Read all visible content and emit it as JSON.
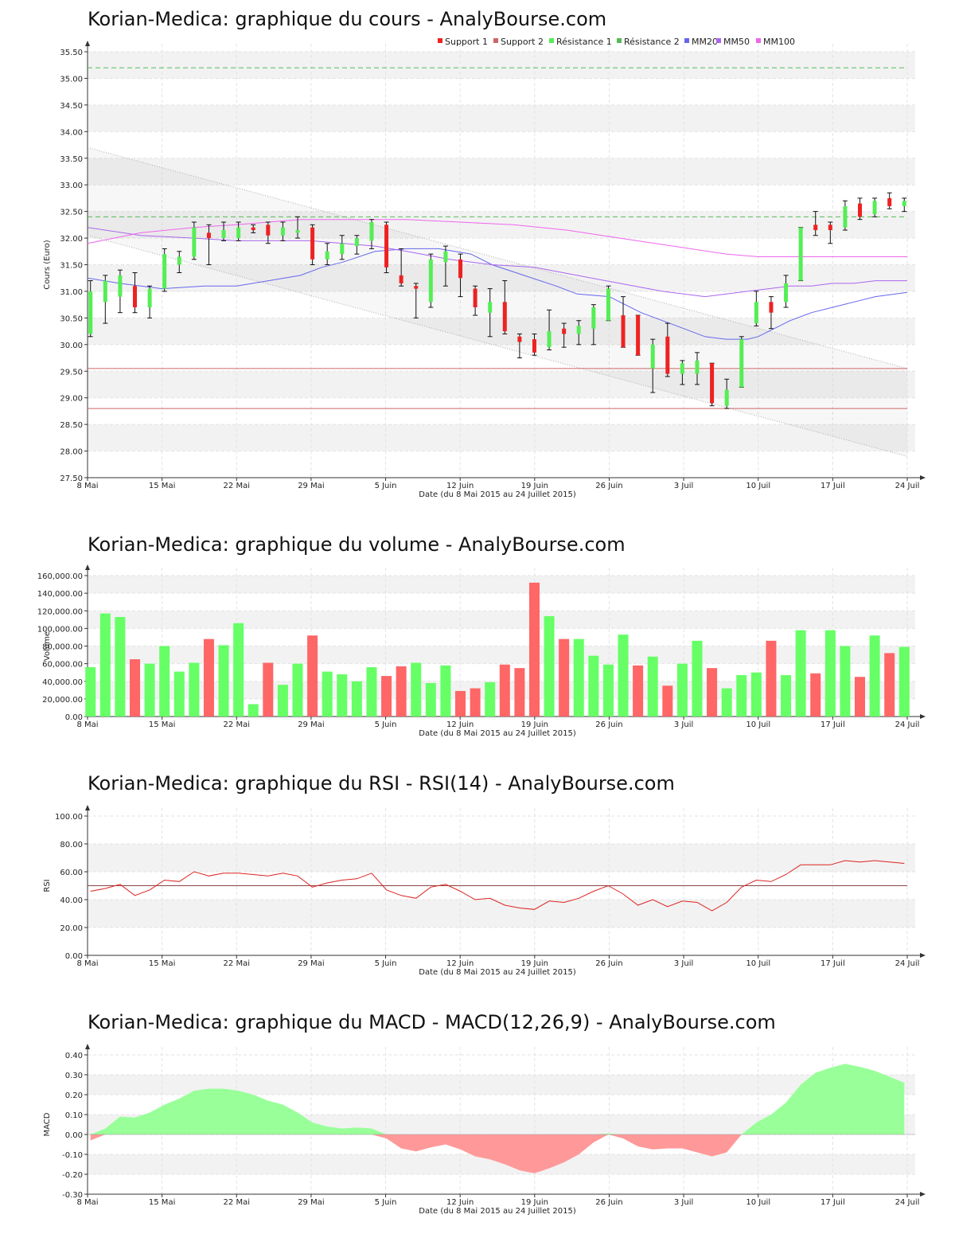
{
  "colors": {
    "up": "#55ee55",
    "down": "#ee2222",
    "vol_up": "#66ff66",
    "vol_down": "#ff6666",
    "mm20": "#6666ee",
    "mm50": "#aa66ee",
    "mm100": "#ee66ee",
    "support": "#cc6666",
    "resistance": "#55bb55",
    "rsi": "#dd2222",
    "macd_pos": "#99ff99",
    "macd_neg": "#ff9999"
  },
  "chart_data": [
    {
      "id": "price",
      "type": "candlestick",
      "title": "Korian-Medica: graphique du cours - AnalyBourse.com",
      "xlabel": "Date (du 8 Mai 2015 au 24 Juillet 2015)",
      "ylabel": "Cours (Euro)",
      "ylim": [
        27.5,
        35.5
      ],
      "yticks": [
        27.5,
        28,
        28.5,
        29,
        29.5,
        30,
        30.5,
        31,
        31.5,
        32,
        32.5,
        33,
        33.5,
        34,
        34.5,
        35,
        35.5
      ],
      "ytick_format": "2",
      "grid": true,
      "xticks": [
        {
          "d": 0,
          "label": "8 Mai"
        },
        {
          "d": 7,
          "label": "15 Mai"
        },
        {
          "d": 14,
          "label": "22 Mai"
        },
        {
          "d": 21,
          "label": "29 Mai"
        },
        {
          "d": 28,
          "label": "5 Juin"
        },
        {
          "d": 35,
          "label": "12 Juin"
        },
        {
          "d": 42,
          "label": "19 Juin"
        },
        {
          "d": 49,
          "label": "26 Juin"
        },
        {
          "d": 56,
          "label": "3 Juil"
        },
        {
          "d": 63,
          "label": "10 Juil"
        },
        {
          "d": 70,
          "label": "17 Juil"
        },
        {
          "d": 77,
          "label": "24 Juil"
        }
      ],
      "legend": [
        "Support 1",
        "Support 2",
        "Résistance 1",
        "Résistance 2",
        "MM20",
        "MM50",
        "MM100"
      ],
      "levels": {
        "support_1": 29.55,
        "support_2": 28.8,
        "resistance_1": 32.4,
        "resistance_2": 35.2
      },
      "trend_lines": [
        [
          [
            0,
            33.7
          ],
          [
            77,
            29.55
          ]
        ],
        [
          [
            0,
            32.05
          ],
          [
            77,
            27.9
          ]
        ]
      ],
      "candles": [
        {
          "d": 0,
          "o": 30.2,
          "h": 31.2,
          "l": 30.15,
          "c": 31.0
        },
        {
          "d": 1,
          "o": 30.8,
          "h": 31.3,
          "l": 30.4,
          "c": 31.2
        },
        {
          "d": 2,
          "o": 30.9,
          "h": 31.4,
          "l": 30.6,
          "c": 31.3
        },
        {
          "d": 3,
          "o": 31.1,
          "h": 31.35,
          "l": 30.6,
          "c": 30.7
        },
        {
          "d": 4,
          "o": 30.7,
          "h": 31.1,
          "l": 30.5,
          "c": 31.05
        },
        {
          "d": 5,
          "o": 31.05,
          "h": 31.8,
          "l": 31.0,
          "c": 31.7
        },
        {
          "d": 6,
          "o": 31.5,
          "h": 31.75,
          "l": 31.35,
          "c": 31.65
        },
        {
          "d": 7,
          "o": 31.65,
          "h": 32.3,
          "l": 31.6,
          "c": 32.2
        },
        {
          "d": 8,
          "o": 32.1,
          "h": 32.25,
          "l": 31.5,
          "c": 32.0
        },
        {
          "d": 9,
          "o": 32.0,
          "h": 32.3,
          "l": 31.95,
          "c": 32.15
        },
        {
          "d": 10,
          "o": 32.0,
          "h": 32.3,
          "l": 31.95,
          "c": 32.2
        },
        {
          "d": 11,
          "o": 32.2,
          "h": 32.25,
          "l": 32.1,
          "c": 32.15
        },
        {
          "d": 12,
          "o": 32.25,
          "h": 32.3,
          "l": 31.9,
          "c": 32.05
        },
        {
          "d": 13,
          "o": 32.05,
          "h": 32.3,
          "l": 31.95,
          "c": 32.2
        },
        {
          "d": 14,
          "o": 32.1,
          "h": 32.4,
          "l": 32.0,
          "c": 32.15
        },
        {
          "d": 15,
          "o": 32.2,
          "h": 32.25,
          "l": 31.5,
          "c": 31.6
        },
        {
          "d": 16,
          "o": 31.6,
          "h": 31.9,
          "l": 31.5,
          "c": 31.75
        },
        {
          "d": 17,
          "o": 31.7,
          "h": 32.05,
          "l": 31.6,
          "c": 31.9
        },
        {
          "d": 18,
          "o": 31.85,
          "h": 32.05,
          "l": 31.7,
          "c": 32.0
        },
        {
          "d": 19,
          "o": 31.95,
          "h": 32.35,
          "l": 31.8,
          "c": 32.3
        },
        {
          "d": 20,
          "o": 32.25,
          "h": 32.3,
          "l": 31.35,
          "c": 31.45
        },
        {
          "d": 21,
          "o": 31.3,
          "h": 31.8,
          "l": 31.1,
          "c": 31.15
        },
        {
          "d": 22,
          "o": 31.1,
          "h": 31.15,
          "l": 30.5,
          "c": 31.05
        },
        {
          "d": 23,
          "o": 30.8,
          "h": 31.7,
          "l": 30.7,
          "c": 31.6
        },
        {
          "d": 24,
          "o": 31.55,
          "h": 31.85,
          "l": 31.1,
          "c": 31.75
        },
        {
          "d": 25,
          "o": 31.6,
          "h": 31.7,
          "l": 30.9,
          "c": 31.25
        },
        {
          "d": 26,
          "o": 31.05,
          "h": 31.1,
          "l": 30.55,
          "c": 30.7
        },
        {
          "d": 27,
          "o": 30.6,
          "h": 31.05,
          "l": 30.15,
          "c": 30.8
        },
        {
          "d": 28,
          "o": 30.8,
          "h": 31.2,
          "l": 30.2,
          "c": 30.25
        },
        {
          "d": 29,
          "o": 30.15,
          "h": 30.2,
          "l": 29.75,
          "c": 30.05
        },
        {
          "d": 30,
          "o": 30.1,
          "h": 30.2,
          "l": 29.8,
          "c": 29.85
        },
        {
          "d": 31,
          "o": 29.95,
          "h": 30.65,
          "l": 29.9,
          "c": 30.25
        },
        {
          "d": 32,
          "o": 30.3,
          "h": 30.4,
          "l": 29.95,
          "c": 30.2
        },
        {
          "d": 33,
          "o": 30.2,
          "h": 30.45,
          "l": 30.0,
          "c": 30.35
        },
        {
          "d": 34,
          "o": 30.3,
          "h": 30.75,
          "l": 30.0,
          "c": 30.7
        },
        {
          "d": 35,
          "o": 30.45,
          "h": 31.1,
          "l": 30.45,
          "c": 31.05
        },
        {
          "d": 36,
          "o": 30.55,
          "h": 30.9,
          "l": 29.95,
          "c": 29.95
        },
        {
          "d": 37,
          "o": 30.55,
          "h": 30.55,
          "l": 29.8,
          "c": 29.8
        },
        {
          "d": 38,
          "o": 29.55,
          "h": 30.1,
          "l": 29.1,
          "c": 30.0
        },
        {
          "d": 39,
          "o": 30.15,
          "h": 30.4,
          "l": 29.4,
          "c": 29.45
        },
        {
          "d": 40,
          "o": 29.45,
          "h": 29.7,
          "l": 29.25,
          "c": 29.65
        },
        {
          "d": 41,
          "o": 29.45,
          "h": 29.85,
          "l": 29.25,
          "c": 29.7
        },
        {
          "d": 42,
          "o": 29.65,
          "h": 29.65,
          "l": 28.85,
          "c": 28.9
        },
        {
          "d": 43,
          "o": 28.85,
          "h": 29.35,
          "l": 28.8,
          "c": 29.15
        },
        {
          "d": 44,
          "o": 29.2,
          "h": 30.15,
          "l": 29.2,
          "c": 30.1
        },
        {
          "d": 45,
          "o": 30.4,
          "h": 31.0,
          "l": 30.35,
          "c": 30.8
        },
        {
          "d": 46,
          "o": 30.8,
          "h": 30.9,
          "l": 30.3,
          "c": 30.6
        },
        {
          "d": 47,
          "o": 30.8,
          "h": 31.3,
          "l": 30.7,
          "c": 31.15
        },
        {
          "d": 48,
          "o": 31.2,
          "h": 32.2,
          "l": 31.2,
          "c": 32.2
        },
        {
          "d": 49,
          "o": 32.25,
          "h": 32.5,
          "l": 32.05,
          "c": 32.15
        },
        {
          "d": 50,
          "o": 32.25,
          "h": 32.3,
          "l": 31.9,
          "c": 32.15
        },
        {
          "d": 51,
          "o": 32.2,
          "h": 32.7,
          "l": 32.15,
          "c": 32.6
        },
        {
          "d": 52,
          "o": 32.65,
          "h": 32.75,
          "l": 32.35,
          "c": 32.4
        },
        {
          "d": 53,
          "o": 32.45,
          "h": 32.75,
          "l": 32.4,
          "c": 32.7
        },
        {
          "d": 54,
          "o": 32.75,
          "h": 32.85,
          "l": 32.55,
          "c": 32.6
        },
        {
          "d": 55,
          "o": 32.6,
          "h": 32.75,
          "l": 32.5,
          "c": 32.7
        }
      ],
      "series": [
        {
          "name": "MM20",
          "x": [
            0,
            3,
            7,
            11,
            14,
            17,
            20,
            22,
            24,
            27,
            30,
            33,
            36,
            38,
            41,
            44,
            46,
            49,
            50,
            52,
            54,
            56,
            58,
            60,
            62,
            63,
            64,
            66,
            68,
            70,
            72,
            74,
            77
          ],
          "y": [
            31.25,
            31.15,
            31.05,
            31.1,
            31.1,
            31.2,
            31.3,
            31.45,
            31.55,
            31.75,
            31.8,
            31.8,
            31.7,
            31.5,
            31.3,
            31.1,
            30.95,
            30.9,
            30.8,
            30.6,
            30.45,
            30.3,
            30.15,
            30.1,
            30.1,
            30.15,
            30.25,
            30.45,
            30.6,
            30.7,
            30.8,
            30.9,
            30.98
          ]
        },
        {
          "name": "MM50",
          "x": [
            0,
            5,
            10,
            14,
            18,
            21,
            24,
            27,
            30,
            34,
            38,
            42,
            46,
            50,
            54,
            58,
            60,
            62,
            64,
            66,
            68,
            70,
            72,
            74,
            77
          ],
          "y": [
            32.2,
            32.05,
            32.0,
            31.95,
            31.95,
            31.95,
            31.9,
            31.85,
            31.75,
            31.6,
            31.5,
            31.45,
            31.3,
            31.15,
            31.0,
            30.9,
            30.95,
            31.0,
            31.05,
            31.1,
            31.1,
            31.15,
            31.15,
            31.2,
            31.2
          ]
        },
        {
          "name": "MM100",
          "x": [
            0,
            5,
            10,
            14,
            20,
            25,
            30,
            35,
            40,
            45,
            50,
            55,
            60,
            63,
            66,
            70,
            74,
            77
          ],
          "y": [
            31.9,
            32.1,
            32.2,
            32.25,
            32.35,
            32.35,
            32.35,
            32.3,
            32.25,
            32.15,
            32.0,
            31.85,
            31.7,
            31.65,
            31.65,
            31.65,
            31.65,
            31.65
          ]
        }
      ]
    },
    {
      "id": "volume",
      "type": "bar",
      "title": "Korian-Medica: graphique du volume - AnalyBourse.com",
      "xlabel": "Date (du 8 Mai 2015 au 24 Juillet 2015)",
      "ylabel": "Volume",
      "ylim": [
        0,
        160000
      ],
      "yticks": [
        0,
        20000,
        40000,
        60000,
        80000,
        100000,
        120000,
        140000,
        160000
      ],
      "values": [
        56000,
        117000,
        113000,
        65000,
        60000,
        80000,
        51000,
        61000,
        88000,
        81000,
        106000,
        14000,
        61000,
        36000,
        60000,
        92000,
        51000,
        48000,
        40000,
        56000,
        46000,
        57000,
        61000,
        38000,
        58000,
        29000,
        32000,
        39000,
        59000,
        55000,
        152000,
        114000,
        88000,
        88000,
        69000,
        59000,
        93000,
        58000,
        68000,
        35000,
        60000,
        86000,
        55000,
        32000,
        47000,
        50000,
        86000,
        47000,
        98000,
        49000,
        98000,
        80000,
        45000,
        92000,
        72000,
        79000
      ],
      "up": [
        1,
        1,
        1,
        0,
        1,
        1,
        1,
        1,
        0,
        1,
        1,
        1,
        0,
        1,
        1,
        0,
        1,
        1,
        1,
        1,
        0,
        0,
        1,
        1,
        1,
        0,
        0,
        1,
        0,
        0,
        0,
        1,
        0,
        1,
        1,
        1,
        1,
        0,
        1,
        0,
        1,
        1,
        0,
        1,
        1,
        1,
        0,
        1,
        1,
        0,
        1,
        1,
        0,
        1,
        0,
        1
      ]
    },
    {
      "id": "rsi",
      "type": "line",
      "title": "Korian-Medica: graphique du RSI - RSI(14) - AnalyBourse.com",
      "xlabel": "Date (du 8 Mai 2015 au 24 Juillet 2015)",
      "ylabel": "RSI",
      "ylim": [
        0,
        100
      ],
      "yticks": [
        0,
        20,
        40,
        60,
        80,
        100
      ],
      "ref_line": 50,
      "series": [
        {
          "name": "RSI(14)",
          "x": [
            0,
            1,
            2,
            3,
            4,
            5,
            6,
            7,
            8,
            9,
            10,
            11,
            12,
            13,
            14,
            15,
            16,
            17,
            18,
            19,
            20,
            21,
            22,
            23,
            24,
            25,
            26,
            27,
            28,
            29,
            30,
            31,
            32,
            33,
            34,
            35,
            36,
            37,
            38,
            39,
            40,
            41,
            42,
            43,
            44,
            45,
            46,
            47,
            48,
            49,
            50,
            51,
            52,
            53,
            54,
            55
          ],
          "y": [
            46,
            48,
            51,
            43,
            47,
            54,
            53,
            60,
            57,
            59,
            59,
            58,
            57,
            59,
            57,
            49,
            52,
            54,
            55,
            59,
            47,
            43,
            41,
            49,
            51,
            46,
            40,
            41,
            36,
            34,
            33,
            39,
            38,
            41,
            46,
            50,
            44,
            36,
            40,
            35,
            39,
            38,
            32,
            38,
            49,
            54,
            53,
            58,
            65,
            65,
            65,
            68,
            67,
            68,
            67,
            66
          ]
        }
      ]
    },
    {
      "id": "macd",
      "type": "area",
      "title": "Korian-Medica: graphique du MACD - MACD(12,26,9) - AnalyBourse.com",
      "xlabel": "Date (du 8 Mai 2015 au 24 Juillet 2015)",
      "ylabel": "MACD",
      "ylim": [
        -0.3,
        0.4
      ],
      "yticks": [
        -0.3,
        -0.2,
        -0.1,
        0,
        0.1,
        0.2,
        0.3,
        0.4
      ],
      "ytick_format": "2",
      "series": [
        {
          "name": "MACD",
          "x": [
            0,
            1,
            2,
            3,
            4,
            5,
            6,
            7,
            8,
            9,
            10,
            11,
            12,
            13,
            14,
            15,
            16,
            17,
            18,
            19,
            20,
            21,
            22,
            23,
            24,
            25,
            26,
            27,
            28,
            29,
            30,
            31,
            32,
            33,
            34,
            35,
            36,
            37,
            38,
            39,
            40,
            41,
            42,
            43,
            44,
            45,
            46,
            47,
            48,
            49,
            50,
            51,
            52,
            53,
            54,
            55
          ],
          "y": [
            -0.03,
            0.03,
            0.09,
            0.085,
            0.11,
            0.15,
            0.18,
            0.22,
            0.23,
            0.23,
            0.22,
            0.2,
            0.17,
            0.15,
            0.11,
            0.06,
            0.04,
            0.03,
            0.035,
            0.03,
            -0.02,
            -0.07,
            -0.085,
            -0.065,
            -0.05,
            -0.075,
            -0.11,
            -0.125,
            -0.15,
            -0.18,
            -0.195,
            -0.17,
            -0.14,
            -0.1,
            -0.04,
            0.005,
            -0.02,
            -0.06,
            -0.075,
            -0.07,
            -0.07,
            -0.09,
            -0.11,
            -0.09,
            0.0,
            0.06,
            0.1,
            0.16,
            0.25,
            0.31,
            0.335,
            0.355,
            0.34,
            0.32,
            0.29,
            0.26
          ]
        }
      ]
    }
  ]
}
